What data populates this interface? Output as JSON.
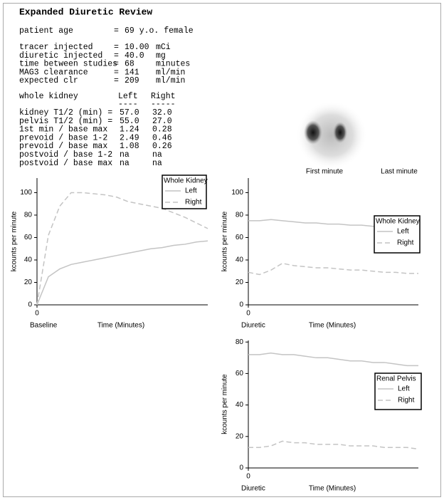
{
  "header": {
    "title": "Expanded Diuretic Review"
  },
  "patient": [
    {
      "label": "patient age",
      "eq": "=",
      "value": "69 y.o. female"
    }
  ],
  "study": [
    {
      "label": "tracer injected",
      "eq": "=",
      "value": "10.00",
      "unit": "mCi"
    },
    {
      "label": "diuretic injected",
      "eq": "=",
      "value": "40.0",
      "unit": "mg"
    },
    {
      "label": "time between studies",
      "eq": "=",
      "value": "68",
      "unit": "minutes"
    },
    {
      "label": "MAG3 clearance",
      "eq": "=",
      "value": "141",
      "unit": "ml/min"
    },
    {
      "label": "expected clr",
      "eq": "=",
      "value": "209",
      "unit": "ml/min"
    }
  ],
  "kidney_table": {
    "headers": [
      "whole kidney",
      "Left",
      "Right"
    ],
    "rules": [
      "----",
      "-----"
    ],
    "rows": [
      [
        "kidney T1/2 (min) =",
        "57.0",
        "32.0"
      ],
      [
        "pelvis T1/2 (min) =",
        "55.0",
        "27.0"
      ],
      [
        "1st min / base max",
        "1.24",
        "0.28"
      ],
      [
        "prevoid / base 1-2",
        "2.49",
        "0.46"
      ],
      [
        "prevoid / base max",
        "1.08",
        "0.26"
      ],
      [
        "postvoid / base 1-2",
        "na",
        "na"
      ],
      [
        "postvoid / base max",
        "na",
        "na"
      ]
    ]
  },
  "scan": {
    "labels": [
      "First minute",
      "Last minute"
    ]
  },
  "chart_data": [
    {
      "type": "line",
      "title": "Whole Kidney",
      "phase": "Baseline",
      "xlabel": "Time (Minutes)",
      "ylabel": "kcounts per minute",
      "x": [
        0,
        2,
        4,
        6,
        8,
        10,
        12,
        14,
        16,
        18,
        20,
        22,
        24,
        26,
        28,
        30
      ],
      "xlim": [
        0,
        30
      ],
      "xticks": [
        0
      ],
      "ylim": [
        0,
        113
      ],
      "yticks": [
        0,
        20,
        40,
        60,
        80,
        100
      ],
      "series": [
        {
          "name": "Left",
          "color": "#c4c4c4",
          "dashed": false,
          "values": [
            0,
            25,
            32,
            36,
            38,
            40,
            42,
            44,
            46,
            48,
            50,
            51,
            53,
            54,
            56,
            57
          ]
        },
        {
          "name": "Right",
          "color": "#c4c4c4",
          "dashed": true,
          "values": [
            0,
            62,
            88,
            100,
            100,
            99,
            98,
            96,
            92,
            90,
            88,
            86,
            82,
            78,
            73,
            68
          ]
        }
      ]
    },
    {
      "type": "line",
      "title": "Whole Kidney",
      "phase": "Diuretic",
      "xlabel": "Time (Minutes)",
      "ylabel": "kcounts per minute",
      "x": [
        0,
        2,
        4,
        6,
        8,
        10,
        12,
        14,
        16,
        18,
        20,
        22,
        24,
        26,
        28,
        30
      ],
      "xlim": [
        0,
        30
      ],
      "xticks": [
        0
      ],
      "ylim": [
        0,
        113
      ],
      "yticks": [
        0,
        20,
        40,
        60,
        80,
        100
      ],
      "series": [
        {
          "name": "Left",
          "color": "#c4c4c4",
          "dashed": false,
          "values": [
            75,
            75,
            76,
            75,
            74,
            73,
            73,
            72,
            72,
            71,
            71,
            70,
            70,
            69,
            69,
            68
          ]
        },
        {
          "name": "Right",
          "color": "#c4c4c4",
          "dashed": true,
          "values": [
            29,
            27,
            31,
            37,
            35,
            34,
            33,
            33,
            32,
            31,
            31,
            30,
            29,
            29,
            28,
            28
          ]
        }
      ]
    },
    {
      "type": "line",
      "title": "Renal Pelvis",
      "phase": "Diuretic",
      "xlabel": "Time (Minutes)",
      "ylabel": "kcounts per minute",
      "x": [
        0,
        2,
        4,
        6,
        8,
        10,
        12,
        14,
        16,
        18,
        20,
        22,
        24,
        26,
        28,
        30
      ],
      "xlim": [
        0,
        30
      ],
      "xticks": [
        0
      ],
      "ylim": [
        0,
        81
      ],
      "yticks": [
        0,
        20,
        40,
        60,
        80
      ],
      "series": [
        {
          "name": "Left",
          "color": "#c4c4c4",
          "dashed": false,
          "values": [
            72,
            72,
            73,
            72,
            72,
            71,
            70,
            70,
            69,
            68,
            68,
            67,
            67,
            66,
            65,
            65
          ]
        },
        {
          "name": "Right",
          "color": "#c4c4c4",
          "dashed": true,
          "values": [
            13,
            13,
            14,
            17,
            16,
            16,
            15,
            15,
            15,
            14,
            14,
            14,
            13,
            13,
            13,
            12
          ]
        }
      ]
    }
  ]
}
